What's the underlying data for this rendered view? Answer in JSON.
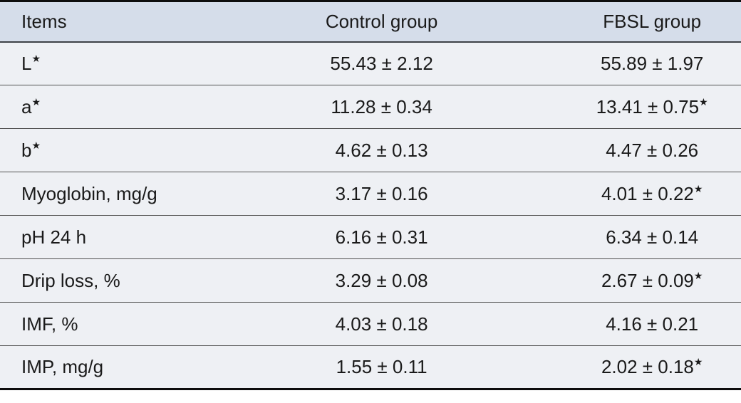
{
  "colors": {
    "header_bg": "#d5ddea",
    "row_bg": "#eef0f4",
    "text": "#1a1a1a",
    "outer_border": "#0d0d0d",
    "header_sep": "#3e4247",
    "row_sep": "#515151",
    "page_bg": "#ffffff"
  },
  "table": {
    "columns": [
      {
        "label": "Items"
      },
      {
        "label": "Control group"
      },
      {
        "label": "FBSL group"
      }
    ],
    "significance_marker": "★",
    "rows": [
      {
        "item": "L",
        "item_sup": "★",
        "control": "55.43 ± 2.12",
        "control_sup": "",
        "fbsl": "55.89 ± 1.97",
        "fbsl_sup": ""
      },
      {
        "item": "a",
        "item_sup": "★",
        "control": "11.28 ± 0.34",
        "control_sup": "",
        "fbsl": "13.41 ± 0.75",
        "fbsl_sup": "★"
      },
      {
        "item": "b",
        "item_sup": "★",
        "control": "4.62 ± 0.13",
        "control_sup": "",
        "fbsl": "4.47 ± 0.26",
        "fbsl_sup": ""
      },
      {
        "item": "Myoglobin, mg/g",
        "item_sup": "",
        "control": "3.17 ± 0.16",
        "control_sup": "",
        "fbsl": "4.01 ± 0.22",
        "fbsl_sup": "★"
      },
      {
        "item": "pH 24 h",
        "item_sup": "",
        "control": "6.16 ± 0.31",
        "control_sup": "",
        "fbsl": "6.34 ± 0.14",
        "fbsl_sup": ""
      },
      {
        "item": "Drip loss, %",
        "item_sup": "",
        "control": "3.29 ± 0.08",
        "control_sup": "",
        "fbsl": "2.67 ± 0.09",
        "fbsl_sup": "★"
      },
      {
        "item": "IMF, %",
        "item_sup": "",
        "control": "4.03 ± 0.18",
        "control_sup": "",
        "fbsl": "4.16 ± 0.21",
        "fbsl_sup": ""
      },
      {
        "item": "IMP, mg/g",
        "item_sup": "",
        "control": "1.55 ± 0.11",
        "control_sup": "",
        "fbsl": "2.02 ± 0.18",
        "fbsl_sup": "★"
      }
    ]
  }
}
